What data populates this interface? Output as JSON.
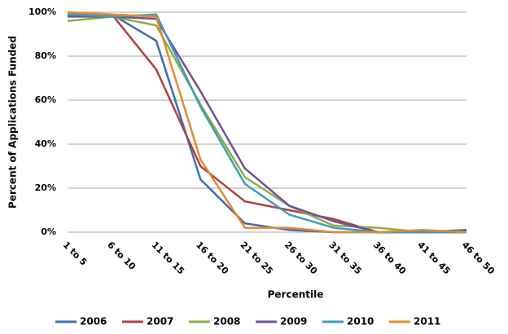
{
  "chart_data": {
    "type": "line",
    "x_label": "Percentile",
    "y_label": "Percent of Applications Funded",
    "categories": [
      "1 to 5",
      "6 to 10",
      "11 to 15",
      "16 to 20",
      "21 to 25",
      "26 to 30",
      "31 to 35",
      "36 to 40",
      "41 to 45",
      "46 to 50"
    ],
    "series": [
      {
        "name": "2006",
        "color": "#3d6eac",
        "values": [
          98,
          99,
          87,
          24,
          4,
          1,
          0,
          0,
          0,
          1
        ]
      },
      {
        "name": "2007",
        "color": "#b0413e",
        "values": [
          99,
          99,
          74,
          30,
          14,
          10,
          6,
          0,
          0,
          0
        ]
      },
      {
        "name": "2008",
        "color": "#8cae44",
        "values": [
          96,
          98,
          94,
          58,
          25,
          12,
          3,
          2,
          0,
          0
        ]
      },
      {
        "name": "2009",
        "color": "#70509a",
        "values": [
          98,
          98,
          97,
          64,
          29,
          12,
          5,
          0,
          0,
          0
        ]
      },
      {
        "name": "2010",
        "color": "#3b9db9",
        "values": [
          99,
          98,
          99,
          57,
          22,
          8,
          2,
          0,
          0,
          0
        ]
      },
      {
        "name": "2011",
        "color": "#e58a31",
        "values": [
          100,
          99,
          98,
          33,
          2,
          2,
          0,
          0,
          1,
          0
        ]
      }
    ],
    "ylim": [
      0,
      100
    ],
    "yticks": [
      {
        "value": 0,
        "label": "0%"
      },
      {
        "value": 20,
        "label": "20%"
      },
      {
        "value": 40,
        "label": "40%"
      },
      {
        "value": 60,
        "label": "60%"
      },
      {
        "value": 80,
        "label": "80%"
      },
      {
        "value": 100,
        "label": "100%"
      }
    ],
    "grid": true,
    "legend": "bottom"
  }
}
